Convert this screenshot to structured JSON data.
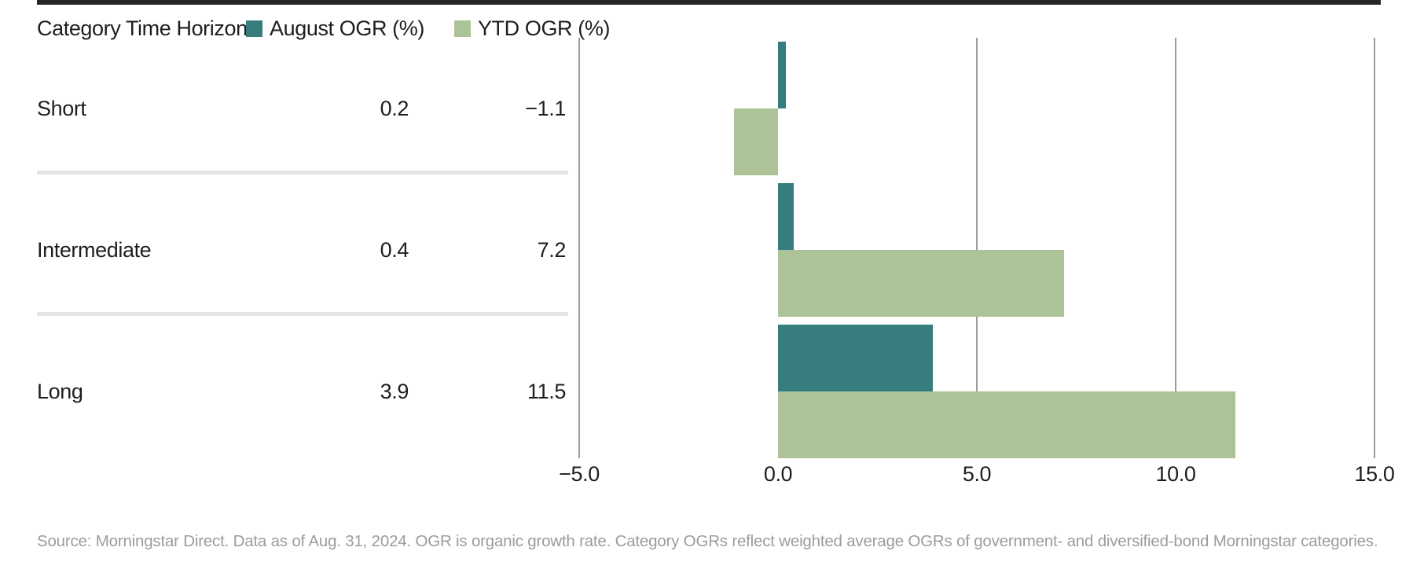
{
  "header": {
    "title": "Category Time Horizon",
    "legend": [
      {
        "key": "august-ogr",
        "label": "August OGR (%)",
        "color": "#387D7E"
      },
      {
        "key": "ytd-ogr",
        "label": "YTD OGR (%)",
        "color": "#ABC397"
      }
    ]
  },
  "table": {
    "rows": [
      {
        "key": "short",
        "label": "Short",
        "august": "0.2",
        "ytd": "−1.1"
      },
      {
        "key": "intermediate",
        "label": "Intermediate",
        "august": "0.4",
        "ytd": "7.2"
      },
      {
        "key": "long",
        "label": "Long",
        "august": "3.9",
        "ytd": "11.5"
      }
    ]
  },
  "chart_data": {
    "type": "bar",
    "orientation": "horizontal",
    "title": "Category Time Horizon",
    "categories": [
      "Short",
      "Intermediate",
      "Long"
    ],
    "series": [
      {
        "key": "august-ogr",
        "name": "August OGR (%)",
        "color": "#387D7E",
        "values": [
          0.2,
          0.4,
          3.9
        ]
      },
      {
        "key": "ytd-ogr",
        "name": "YTD OGR (%)",
        "color": "#ABC397",
        "values": [
          -1.1,
          7.2,
          11.5
        ]
      }
    ],
    "xlim": [
      -5,
      15
    ],
    "xticks": [
      {
        "value": -5,
        "label": "−5.0",
        "gridline": true
      },
      {
        "value": 0,
        "label": "0.0",
        "gridline": false
      },
      {
        "value": 5,
        "label": "5.0",
        "gridline": true
      },
      {
        "value": 10,
        "label": "10.0",
        "gridline": true
      },
      {
        "value": 15,
        "label": "15.0",
        "gridline": true
      }
    ],
    "grid": "vertical",
    "legend_position": "top"
  },
  "source_note": "Source: Morningstar Direct. Data as of Aug. 31, 2024. OGR is organic growth rate. Category OGRs reflect weighted average OGRs of government- and diversified-bond Morningstar categories.",
  "colors": {
    "august_series": "#387D7E",
    "ytd_series": "#ABC397",
    "gridline": "#9C9C9C",
    "separator": "#E4E4E4",
    "text": "#1E1E1E",
    "source_text": "#9C9C9C",
    "top_rule": "#262626"
  }
}
